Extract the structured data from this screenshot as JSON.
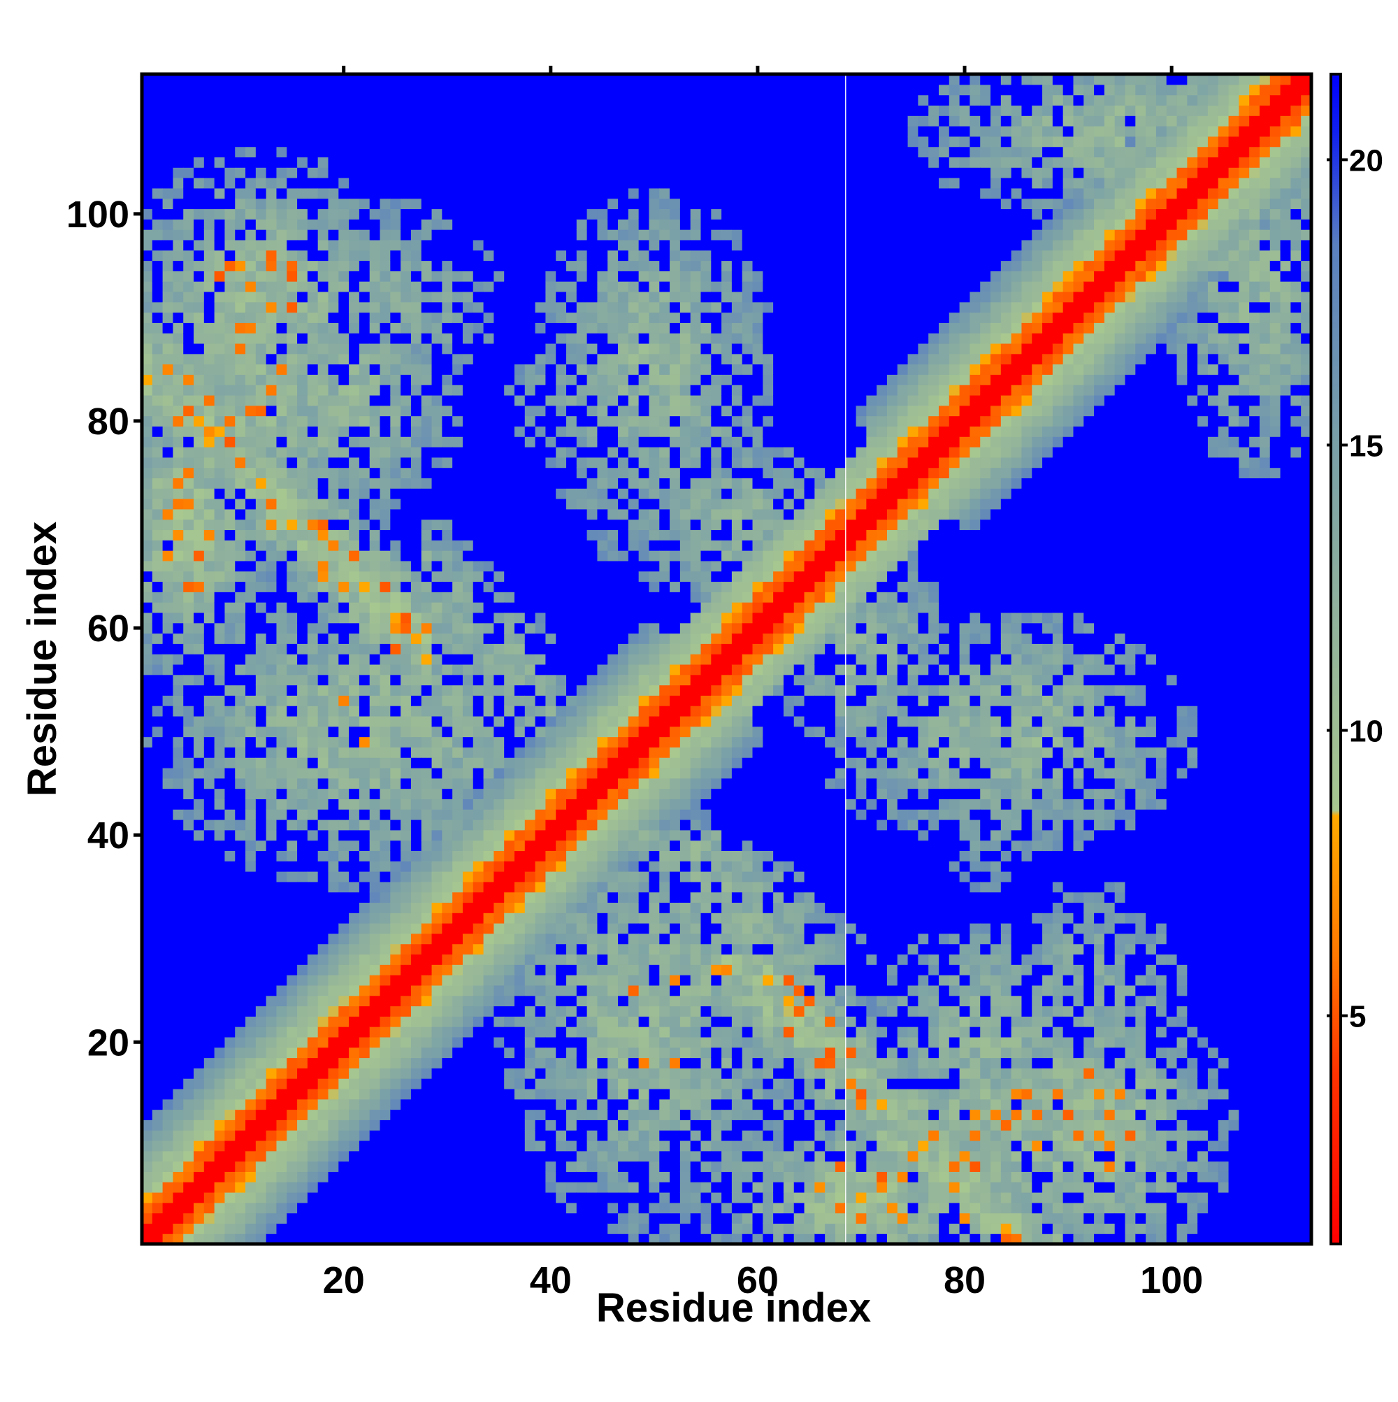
{
  "chart_data": {
    "type": "heatmap",
    "title": "",
    "xlabel": "Residue index",
    "ylabel": "Residue index",
    "x_range": [
      1,
      113
    ],
    "y_range": [
      1,
      113
    ],
    "n_residues": 113,
    "xticks": [
      20,
      40,
      60,
      80,
      100
    ],
    "yticks": [
      20,
      40,
      60,
      80,
      100
    ],
    "colorbar": {
      "ticks": [
        5,
        10,
        15,
        20
      ],
      "range": [
        1,
        21.5
      ],
      "stops": [
        {
          "value": 1,
          "color": "#ff0000"
        },
        {
          "value": 4,
          "color": "#ff3300"
        },
        {
          "value": 6,
          "color": "#ff7700"
        },
        {
          "value": 8.5,
          "color": "#ffaa00"
        },
        {
          "value": 8.6,
          "color": "#a8c890"
        },
        {
          "value": 11,
          "color": "#98b898"
        },
        {
          "value": 15,
          "color": "#7aa0a8"
        },
        {
          "value": 18.5,
          "color": "#5a80c0"
        },
        {
          "value": 20.5,
          "color": "#1020f0"
        },
        {
          "value": 21.5,
          "color": "#0000ff"
        }
      ]
    },
    "no_contact_value": 21.5,
    "contact_regions": [
      {
        "x": [
          1,
          113
        ],
        "y": [
          1,
          113
        ],
        "description": "main diagonal",
        "min_value": 1
      },
      {
        "x": [
          1,
          30
        ],
        "y": [
          30,
          113
        ],
        "description": "upper-left antiparallel band"
      },
      {
        "x": [
          30,
          90
        ],
        "y": [
          1,
          30
        ],
        "description": "lower antiparallel band"
      },
      {
        "x": [
          40,
          75
        ],
        "y": [
          55,
          100
        ],
        "description": "central upper cluster"
      },
      {
        "x": [
          65,
          100
        ],
        "y": [
          40,
          60
        ],
        "description": "central right cluster"
      },
      {
        "x": [
          70,
          100
        ],
        "y": [
          1,
          35
        ],
        "description": "lower-right cluster"
      },
      {
        "x": [
          80,
          113
        ],
        "y": [
          80,
          113
        ],
        "description": "upper-right near-diagonal region"
      }
    ],
    "grid": false,
    "legend": "colorbar-right"
  }
}
